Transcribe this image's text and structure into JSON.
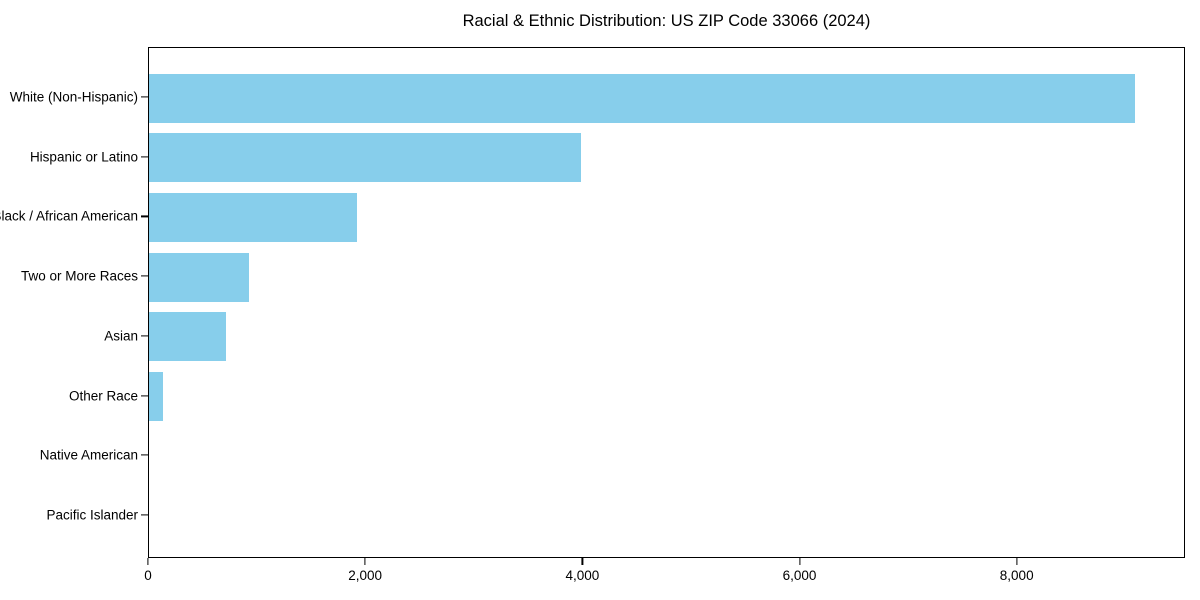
{
  "title": "Racial & Ethnic Distribution: US ZIP Code 33066 (2024)",
  "colors": {
    "bar": "#87CEEB",
    "frame": "#000000",
    "text": "#000000",
    "background": "#ffffff"
  },
  "chart_data": {
    "type": "bar",
    "orientation": "horizontal",
    "title": "Racial & Ethnic Distribution: US ZIP Code 33066 (2024)",
    "xlabel": "",
    "ylabel": "",
    "categories": [
      "White (Non-Hispanic)",
      "Hispanic or Latino",
      "Black / African American",
      "Two or More Races",
      "Asian",
      "Other Race",
      "Native American",
      "Pacific Islander"
    ],
    "values": [
      9100,
      3990,
      1920,
      920,
      710,
      130,
      0,
      0
    ],
    "xlim": [
      0,
      9550
    ],
    "x_ticks": [
      0,
      2000,
      4000,
      6000,
      8000
    ],
    "x_tick_labels": [
      "0",
      "2,000",
      "4,000",
      "6,000",
      "8,000"
    ],
    "bar_color": "#87CEEB",
    "grid": false,
    "legend": false
  }
}
